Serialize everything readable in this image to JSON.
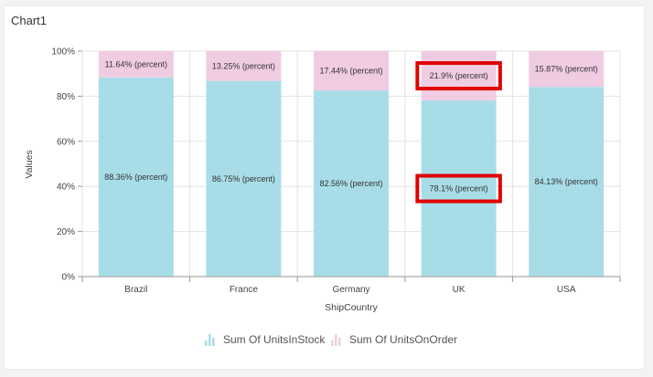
{
  "panel": {
    "title": "Chart1"
  },
  "chart_data": {
    "type": "bar",
    "stacked": "100%",
    "categories": [
      "Brazil",
      "France",
      "Germany",
      "UK",
      "USA"
    ],
    "series": [
      {
        "name": "Sum Of UnitsInStock",
        "values": [
          88.36,
          86.75,
          82.56,
          78.1,
          84.13
        ],
        "labels": [
          "88.36% (percent)",
          "86.75% (percent)",
          "82.56% (percent)",
          "78.1% (percent)",
          "84.13% (percent)"
        ],
        "color": "#a8dde8"
      },
      {
        "name": "Sum Of UnitsOnOrder",
        "values": [
          11.64,
          13.25,
          17.44,
          21.9,
          15.87
        ],
        "labels": [
          "11.64% (percent)",
          "13.25% (percent)",
          "17.44% (percent)",
          "21.9% (percent)",
          "15.87% (percent)"
        ],
        "color": "#f0cce3"
      }
    ],
    "yticks": [
      "0%",
      "20%",
      "40%",
      "60%",
      "80%",
      "100%"
    ],
    "ylim": [
      0,
      100
    ],
    "xlabel": "ShipCountry",
    "ylabel": "Values",
    "grid": true,
    "legend": "bottom-center",
    "highlight": {
      "category": "UK",
      "color": "#e00000"
    }
  }
}
